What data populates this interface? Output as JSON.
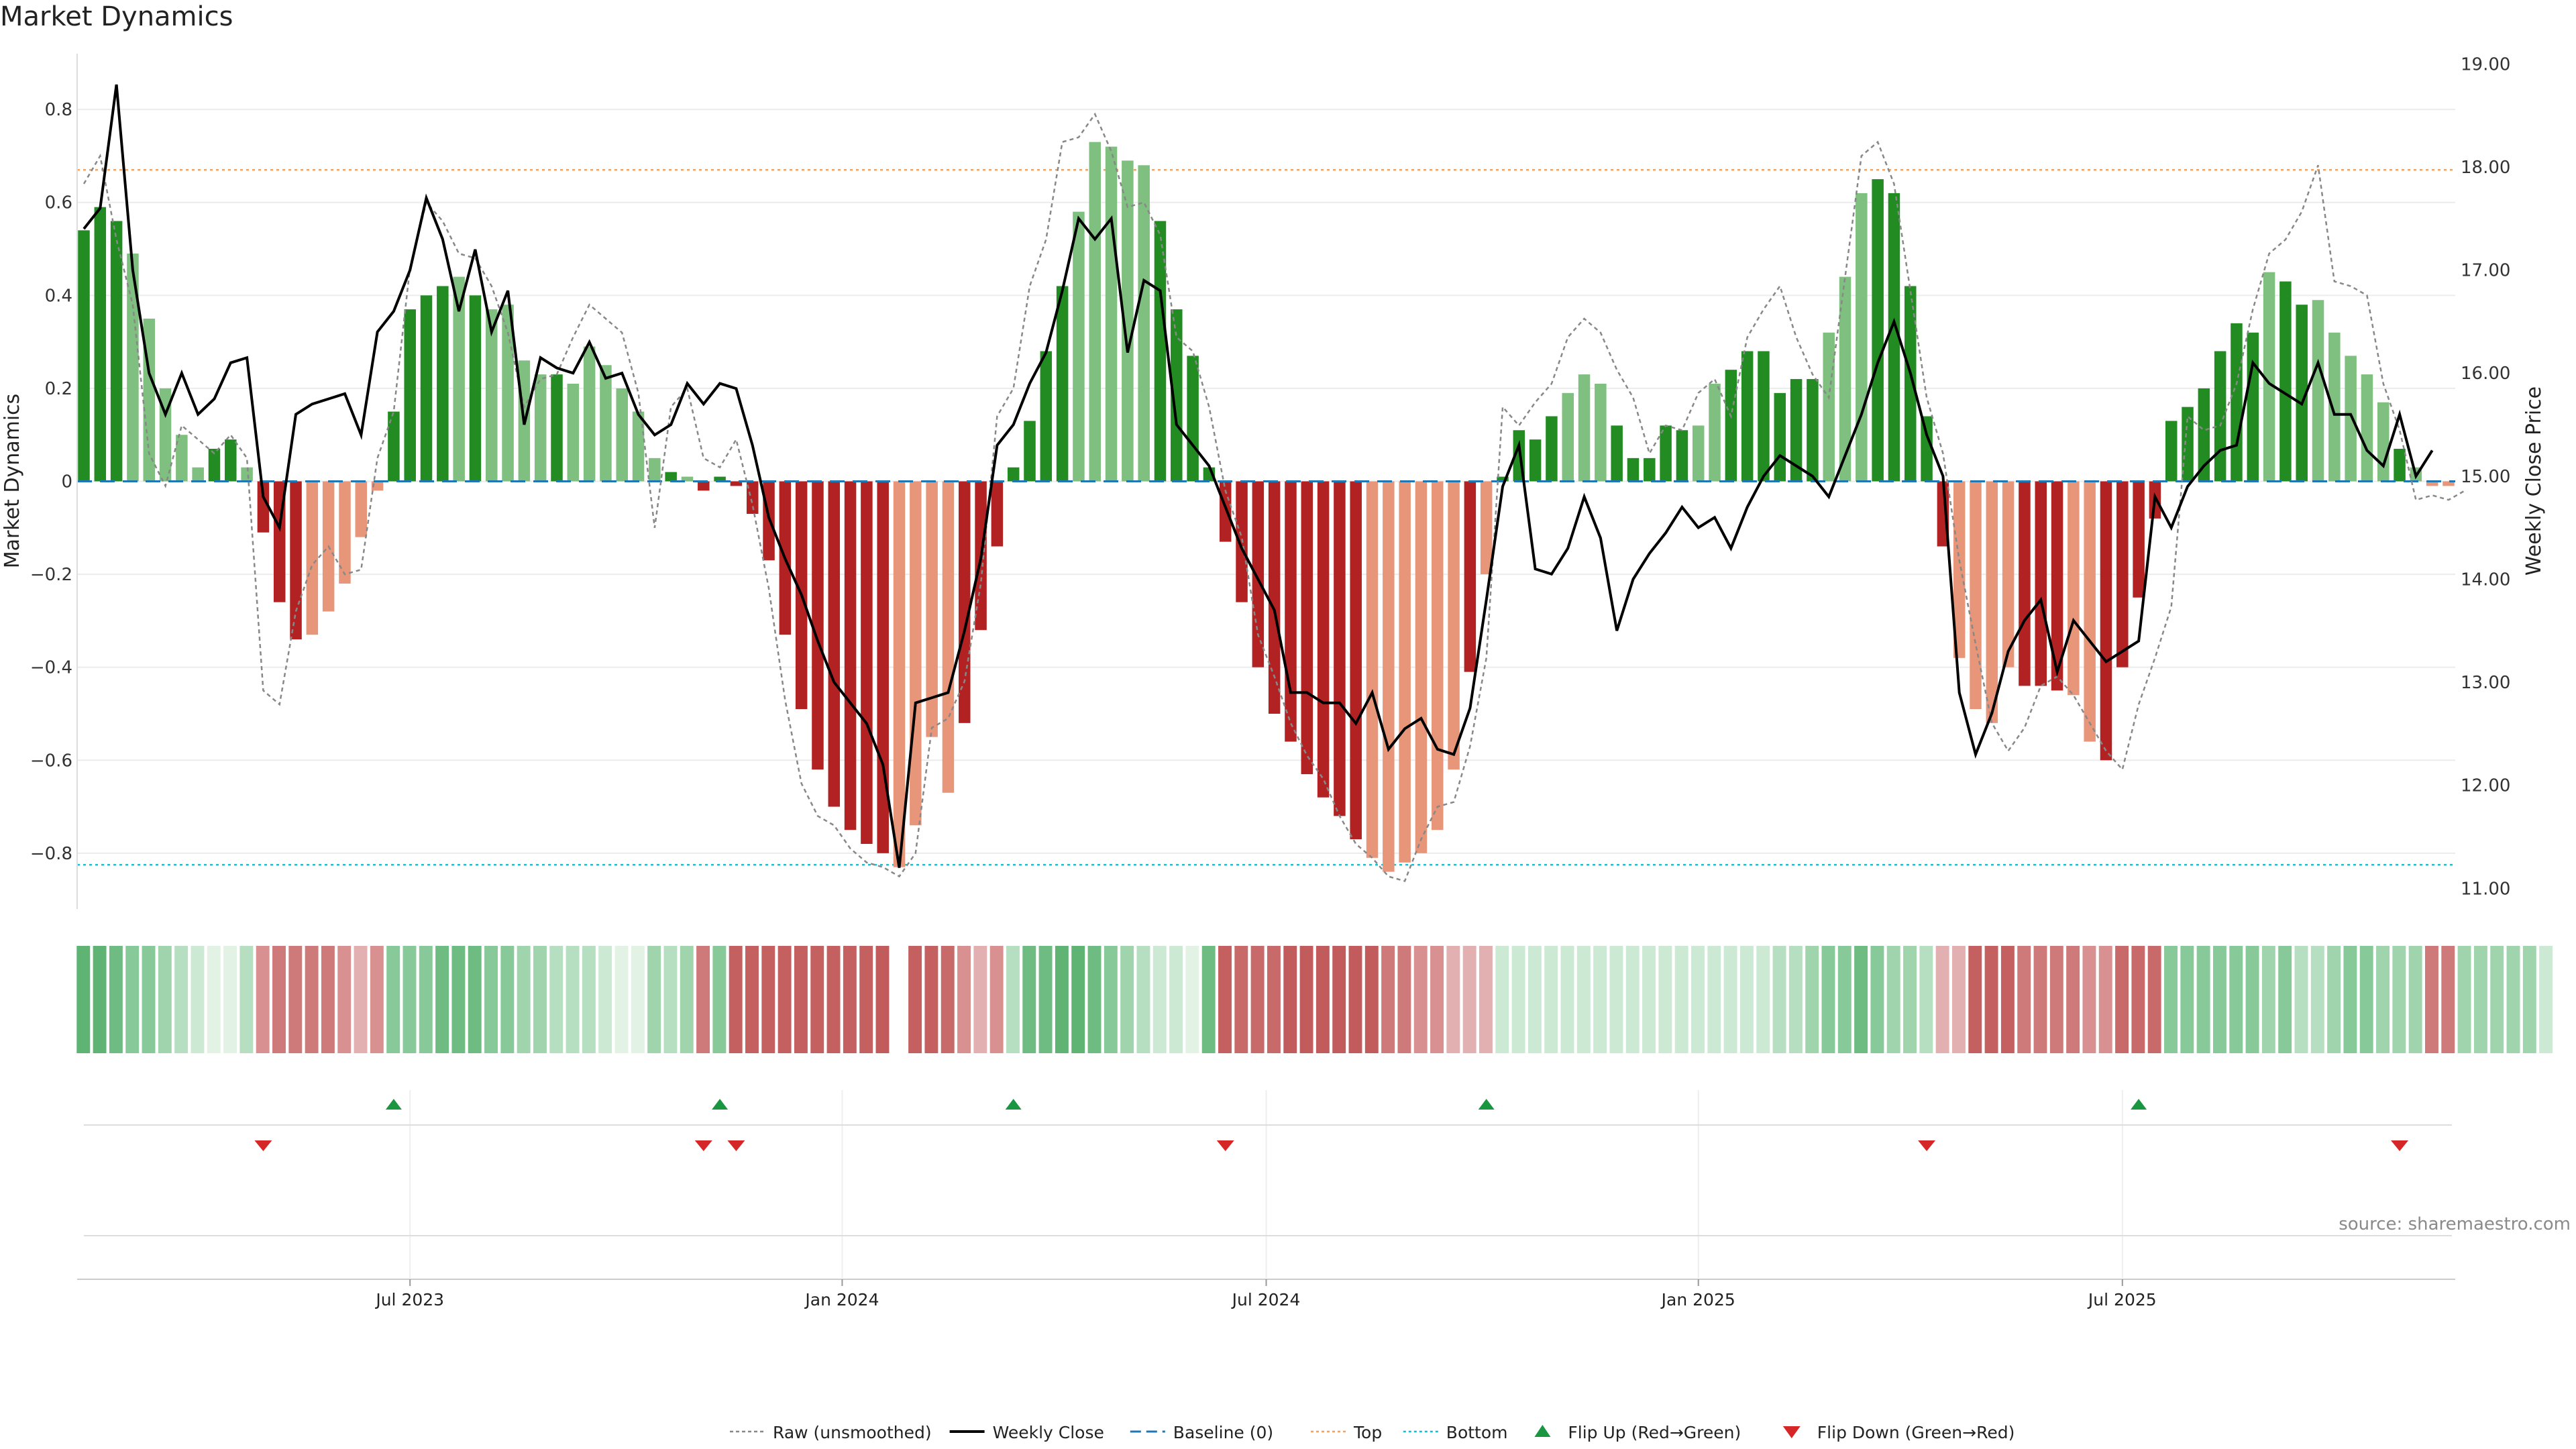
{
  "title": "Market Dynamics",
  "source": "source: sharemaestro.com",
  "colors": {
    "strong_green": "#228B22",
    "light_green": "#7FBF7F",
    "strong_red": "#B22222",
    "light_red": "#E8967A",
    "raw_line": "#888888",
    "close_line": "#000000",
    "baseline": "#1f77b4",
    "top": "#F4A460",
    "bottom": "#17becf",
    "flip_up": "#1a9641",
    "flip_down": "#d62728"
  },
  "chart_data": {
    "type": "bar",
    "title": "Market Dynamics",
    "ylabel": "Market Dynamics",
    "y2label": "Weekly Close Price",
    "ylim": [
      -0.92,
      0.92
    ],
    "y2lim": [
      10.8,
      19.1
    ],
    "y_ticks": [
      "0.8",
      "0.6",
      "0.4",
      "0.2",
      "0",
      "−0.2",
      "−0.4",
      "−0.6",
      "−0.8"
    ],
    "y_tick_values": [
      0.8,
      0.6,
      0.4,
      0.2,
      0,
      -0.2,
      -0.4,
      -0.6,
      -0.8
    ],
    "y2_ticks": [
      "19.00",
      "18.00",
      "17.00",
      "16.00",
      "15.00",
      "14.00",
      "13.00",
      "12.00",
      "11.00"
    ],
    "y2_tick_values": [
      19,
      18,
      17,
      16,
      15,
      14,
      13,
      12,
      11
    ],
    "x_range_weeks": [
      0,
      145
    ],
    "x_ticks": [
      {
        "label": "Jul 2023",
        "week": 20
      },
      {
        "label": "Jan 2024",
        "week": 46.5
      },
      {
        "label": "Jul 2024",
        "week": 72.5
      },
      {
        "label": "Jan 2025",
        "week": 99
      },
      {
        "label": "Jul 2025",
        "week": 125
      }
    ],
    "top_threshold": 0.67,
    "bottom_threshold": -0.825,
    "bars": [
      0.54,
      0.59,
      0.56,
      0.49,
      0.35,
      0.2,
      0.1,
      0.03,
      0.07,
      0.09,
      0.03,
      -0.11,
      -0.26,
      -0.34,
      -0.33,
      -0.28,
      -0.22,
      -0.12,
      -0.02,
      0.15,
      0.37,
      0.4,
      0.42,
      0.44,
      0.4,
      0.37,
      0.38,
      0.26,
      0.23,
      0.23,
      0.21,
      0.29,
      0.25,
      0.2,
      0.15,
      0.05,
      0.02,
      0.01,
      -0.02,
      0.01,
      -0.01,
      -0.07,
      -0.17,
      -0.33,
      -0.49,
      -0.62,
      -0.7,
      -0.75,
      -0.78,
      -0.8,
      -0.83,
      -0.74,
      -0.55,
      -0.67,
      -0.52,
      -0.32,
      -0.14,
      0.03,
      0.13,
      0.28,
      0.42,
      0.58,
      0.73,
      0.72,
      0.69,
      0.68,
      0.56,
      0.37,
      0.27,
      0.03,
      -0.13,
      -0.26,
      -0.4,
      -0.5,
      -0.56,
      -0.63,
      -0.68,
      -0.72,
      -0.77,
      -0.81,
      -0.84,
      -0.82,
      -0.8,
      -0.75,
      -0.62,
      -0.41,
      -0.2,
      0.01,
      0.11,
      0.09,
      0.14,
      0.19,
      0.23,
      0.21,
      0.12,
      0.05,
      0.05,
      0.12,
      0.11,
      0.12,
      0.21,
      0.24,
      0.28,
      0.28,
      0.19,
      0.22,
      0.22,
      0.32,
      0.44,
      0.62,
      0.65,
      0.62,
      0.42,
      0.14,
      -0.14,
      -0.38,
      -0.49,
      -0.52,
      -0.4,
      -0.44,
      -0.44,
      -0.45,
      -0.46,
      -0.56,
      -0.6,
      -0.4,
      -0.25,
      -0.08,
      0.13,
      0.16,
      0.2,
      0.28,
      0.34,
      0.32,
      0.45,
      0.43,
      0.38,
      0.39,
      0.32,
      0.27,
      0.23,
      0.17,
      0.07,
      0.03,
      -0.01,
      -0.01
    ],
    "bar_shades": "SSSLLLLLSSLSSSLLLLLSSSSLSLLLLSLLLLLLSLSSSSSSSSSSSSLLLLSSSSSSSLLLLLSSSSSSSSSSSSSLLLLLLSLSSSSLLLSSSSSLLSSSSSSLLLSSSSSLLLLSSSLLSSSSSSSSSSLSSLLLLLSLL",
    "raw_line": [
      0.64,
      0.7,
      0.52,
      0.38,
      0.06,
      -0.01,
      0.12,
      0.09,
      0.06,
      0.1,
      0.05,
      -0.45,
      -0.48,
      -0.28,
      -0.18,
      -0.14,
      -0.2,
      -0.19,
      0.05,
      0.15,
      0.46,
      0.6,
      0.56,
      0.49,
      0.48,
      0.42,
      0.32,
      0.16,
      0.22,
      0.23,
      0.31,
      0.38,
      0.35,
      0.32,
      0.19,
      -0.1,
      0.16,
      0.2,
      0.05,
      0.03,
      0.09,
      -0.05,
      -0.23,
      -0.47,
      -0.65,
      -0.72,
      -0.74,
      -0.79,
      -0.82,
      -0.83,
      -0.85,
      -0.8,
      -0.53,
      -0.51,
      -0.43,
      -0.22,
      0.14,
      0.2,
      0.42,
      0.52,
      0.73,
      0.74,
      0.79,
      0.71,
      0.59,
      0.6,
      0.53,
      0.31,
      0.28,
      0.16,
      -0.02,
      -0.12,
      -0.33,
      -0.42,
      -0.52,
      -0.59,
      -0.64,
      -0.72,
      -0.78,
      -0.81,
      -0.85,
      -0.86,
      -0.77,
      -0.7,
      -0.69,
      -0.57,
      -0.38,
      0.16,
      0.12,
      0.17,
      0.21,
      0.31,
      0.35,
      0.32,
      0.24,
      0.18,
      0.06,
      0.12,
      0.11,
      0.19,
      0.22,
      0.14,
      0.31,
      0.37,
      0.42,
      0.31,
      0.23,
      0.18,
      0.44,
      0.7,
      0.73,
      0.64,
      0.41,
      0.18,
      0.06,
      -0.17,
      -0.35,
      -0.52,
      -0.58,
      -0.53,
      -0.44,
      -0.42,
      -0.46,
      -0.52,
      -0.58,
      -0.62,
      -0.48,
      -0.38,
      -0.27,
      0.14,
      0.11,
      0.12,
      0.21,
      0.37,
      0.49,
      0.52,
      0.58,
      0.68,
      0.43,
      0.42,
      0.4,
      0.21,
      0.11,
      -0.04,
      -0.03,
      -0.04,
      -0.02
    ],
    "weekly_close": [
      17.4,
      17.6,
      18.8,
      17.0,
      16.0,
      15.6,
      16.0,
      15.6,
      15.75,
      16.1,
      16.15,
      14.8,
      14.5,
      15.6,
      15.7,
      15.75,
      15.8,
      15.4,
      16.4,
      16.6,
      17.0,
      17.7,
      17.3,
      16.6,
      17.2,
      16.4,
      16.8,
      15.5,
      16.15,
      16.05,
      16.0,
      16.3,
      15.95,
      16.0,
      15.6,
      15.4,
      15.5,
      15.9,
      15.7,
      15.9,
      15.85,
      15.3,
      14.6,
      14.2,
      13.85,
      13.4,
      13.0,
      12.8,
      12.6,
      12.2,
      11.2,
      12.8,
      12.85,
      12.9,
      13.5,
      14.2,
      15.3,
      15.5,
      15.9,
      16.2,
      16.8,
      17.5,
      17.3,
      17.5,
      16.2,
      16.9,
      16.8,
      15.5,
      15.3,
      15.1,
      14.7,
      14.3,
      14.0,
      13.7,
      12.9,
      12.9,
      12.8,
      12.8,
      12.6,
      12.9,
      12.35,
      12.55,
      12.65,
      12.35,
      12.3,
      12.75,
      13.8,
      14.9,
      15.3,
      14.1,
      14.05,
      14.3,
      14.8,
      14.4,
      13.5,
      14.0,
      14.25,
      14.45,
      14.7,
      14.5,
      14.6,
      14.3,
      14.7,
      15.0,
      15.2,
      15.1,
      15.0,
      14.8,
      15.2,
      15.6,
      16.1,
      16.5,
      16.0,
      15.4,
      15.0,
      12.9,
      12.3,
      12.7,
      13.3,
      13.6,
      13.8,
      13.1,
      13.6,
      13.4,
      13.2,
      13.3,
      13.4,
      14.8,
      14.5,
      14.9,
      15.1,
      15.25,
      15.3,
      16.1,
      15.9,
      15.8,
      15.7,
      16.1,
      15.6,
      15.6,
      15.25,
      15.1,
      15.6,
      15.0,
      15.25
    ],
    "heat_shades": "77655432113344443235556665544333211434456666666667066532336677654322166555777777443322222222222222222222334556544322666444433555555555453345544444444442",
    "flip_up_weeks": [
      19,
      39,
      57,
      86,
      126
    ],
    "flip_down_weeks": [
      11,
      38,
      40,
      70,
      113,
      142
    ],
    "legend": [
      "Raw (unsmoothed)",
      "Weekly Close",
      "Baseline (0)",
      "Top",
      "Bottom",
      "Flip Up (Red→Green)",
      "Flip Down (Green→Red)"
    ]
  }
}
